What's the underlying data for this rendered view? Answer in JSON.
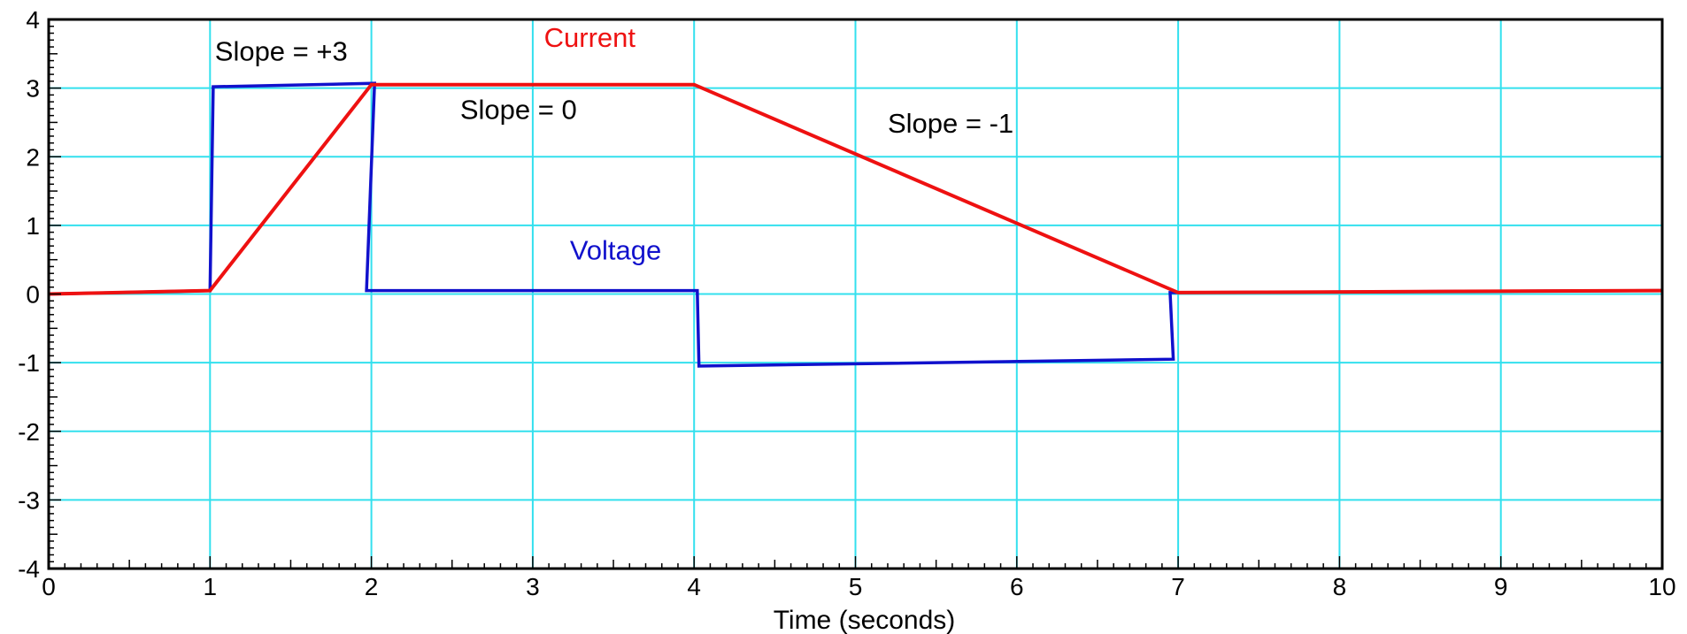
{
  "chart_data": {
    "type": "line",
    "xlabel": "Time (seconds)",
    "ylabel": "",
    "xlim": [
      0,
      10
    ],
    "ylim": [
      -4,
      4
    ],
    "x_ticks": [
      "0",
      "1",
      "2",
      "3",
      "4",
      "5",
      "6",
      "7",
      "8",
      "9",
      "10"
    ],
    "y_ticks": [
      "4",
      "3",
      "2",
      "1",
      "0",
      "-1",
      "-2",
      "-3",
      "-4"
    ],
    "grid": true,
    "colors": {
      "grid": "#33e0ee",
      "current": "#ee1111",
      "voltage": "#1111cc",
      "axis": "#000000"
    },
    "series": [
      {
        "name": "Current",
        "x": [
          0,
          1,
          2,
          4,
          7,
          10
        ],
        "y": [
          0,
          0.05,
          3.05,
          3.05,
          0.02,
          0.05
        ]
      },
      {
        "name": "Voltage",
        "x": [
          0,
          1,
          1.02,
          2.02,
          1.97,
          4.02,
          4.03,
          6.97,
          6.95,
          7,
          10
        ],
        "y": [
          0,
          0.05,
          3.02,
          3.07,
          0.05,
          0.05,
          -1.05,
          -0.95,
          0.02,
          0.02,
          0.05
        ]
      }
    ],
    "annotations": [
      {
        "text": "Slope = +3",
        "x": 1.03,
        "y": 3.4,
        "color": "#000000"
      },
      {
        "text": "Slope = 0",
        "x": 2.55,
        "y": 2.55,
        "color": "#000000"
      },
      {
        "text": "Slope = -1",
        "x": 5.2,
        "y": 2.35,
        "color": "#000000"
      },
      {
        "text": "Current",
        "x": 3.07,
        "y": 3.6,
        "color": "#ee1111"
      },
      {
        "text": "Voltage",
        "x": 3.23,
        "y": 0.5,
        "color": "#1111cc"
      }
    ]
  }
}
